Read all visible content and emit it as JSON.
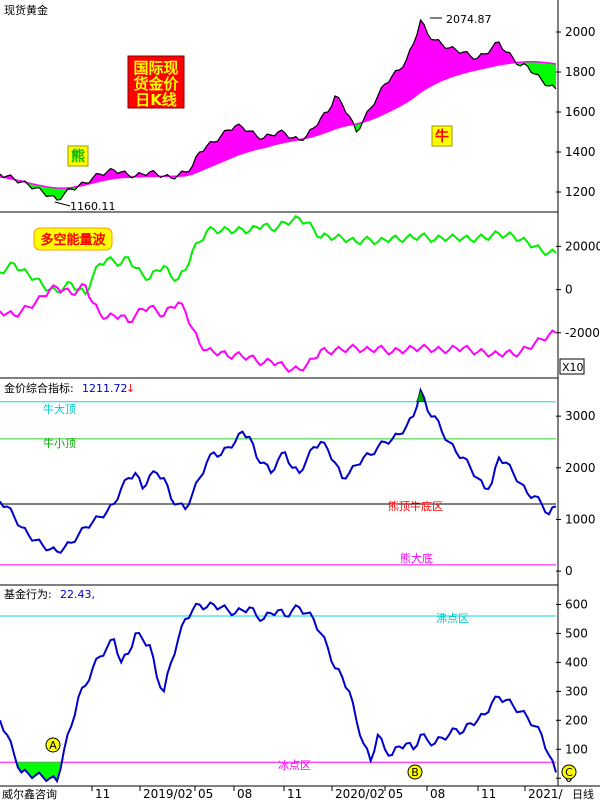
{
  "window": {
    "title": "现货黄金",
    "period_label": "日线"
  },
  "colors": {
    "price_line": "#000000",
    "bull_fill": "#ff00ff",
    "bear_fill": "#00ff00",
    "wave_green": "#00ee00",
    "wave_magenta": "#ff00ff",
    "index_line": "#0000cc",
    "ref_cyan": "#00dddd",
    "ref_green": "#33cc33",
    "ref_black": "#000000",
    "ref_magenta": "#ff00ff",
    "badge_red": "#ff0000",
    "badge_yellow": "#ffff00"
  },
  "labels": {
    "title_badge": "国际现货金价日K线",
    "bear": "熊",
    "bull": "牛",
    "wave_badge": "多空能量波",
    "index_name": "金价综合指标:",
    "index_value": "1211.72",
    "fund_name": "基金行为:",
    "fund_value": "22.43,",
    "cold_zone": "冰点区",
    "boil_zone": "沸点区",
    "bull_top": "牛大顶",
    "bull_small_top": "牛小顶",
    "bear_bottom": "熊顶牛底区",
    "bear_big_bottom": "熊大底",
    "marker_a": "A",
    "marker_b": "B",
    "marker_c": "C",
    "unit_x10": "X10",
    "footer_left": "威尔鑫咨询"
  },
  "chart_data": [
    {
      "type": "line",
      "name": "price",
      "x_labels": [
        "11",
        "2019/02",
        "05",
        "08",
        "11",
        "2020/02",
        "05",
        "08",
        "11",
        "2021/"
      ],
      "ylim": [
        1130,
        2120
      ],
      "yticks": [
        1200,
        1400,
        1600,
        1800,
        2000
      ],
      "max_label": "2074.87",
      "min_label": "1160.11",
      "values": [
        1290,
        1280,
        1265,
        1250,
        1235,
        1220,
        1200,
        1180,
        1160,
        1190,
        1215,
        1230,
        1245,
        1270,
        1290,
        1300,
        1310,
        1300,
        1285,
        1280,
        1290,
        1300,
        1290,
        1280,
        1270,
        1285,
        1300,
        1330,
        1400,
        1430,
        1450,
        1480,
        1510,
        1530,
        1525,
        1505,
        1480,
        1470,
        1485,
        1500,
        1495,
        1470,
        1460,
        1480,
        1520,
        1570,
        1600,
        1680,
        1640,
        1580,
        1500,
        1560,
        1620,
        1680,
        1740,
        1780,
        1810,
        1860,
        1940,
        2060,
        1990,
        1960,
        1940,
        1920,
        1910,
        1900,
        1880,
        1870,
        1890,
        1920,
        1950,
        1900,
        1870,
        1830,
        1830,
        1790,
        1760,
        1730,
        1715
      ],
      "moving_average": [
        1275,
        1270,
        1262,
        1255,
        1245,
        1237,
        1230,
        1223,
        1220,
        1219,
        1222,
        1228,
        1236,
        1245,
        1254,
        1262,
        1268,
        1272,
        1274,
        1276,
        1277,
        1278,
        1278,
        1278,
        1278,
        1279,
        1281,
        1290,
        1305,
        1320,
        1335,
        1350,
        1365,
        1380,
        1393,
        1404,
        1414,
        1422,
        1432,
        1441,
        1449,
        1456,
        1462,
        1469,
        1478,
        1490,
        1502,
        1516,
        1527,
        1535,
        1540,
        1550,
        1562,
        1576,
        1593,
        1610,
        1628,
        1648,
        1672,
        1700,
        1722,
        1741,
        1758,
        1772,
        1784,
        1795,
        1804,
        1812,
        1820,
        1828,
        1836,
        1841,
        1846,
        1849,
        1851,
        1851,
        1849,
        1845,
        1840
      ]
    },
    {
      "type": "line",
      "name": "energy_wave",
      "ylim": [
        -40000,
        35000
      ],
      "yticks": [
        20000,
        0,
        -20000
      ],
      "series": [
        {
          "values": [
            8000,
            10000,
            12000,
            9000,
            7000,
            5000,
            2000,
            0,
            -1000,
            1000,
            3000,
            0,
            -2000,
            6000,
            12000,
            14000,
            13000,
            12000,
            15000,
            10000,
            7000,
            5000,
            9000,
            11000,
            6000,
            5000,
            9000,
            18000,
            22000,
            27000,
            28000,
            27000,
            28000,
            27000,
            28000,
            27000,
            29000,
            30000,
            28000,
            29000,
            31000,
            32000,
            33000,
            31000,
            28000,
            24000,
            25000,
            24000,
            24000,
            23000,
            22000,
            23000,
            23000,
            22000,
            23000,
            24000,
            23000,
            24000,
            24000,
            25000,
            24000,
            23000,
            24000,
            24000,
            24000,
            24000,
            23000,
            24000,
            24000,
            25000,
            26000,
            25000,
            25000,
            23000,
            22000,
            20000,
            18000,
            17000,
            17000
          ]
        },
        {
          "values": [
            -10000,
            -11000,
            -12000,
            -10000,
            -8000,
            -6000,
            -3000,
            0,
            1000,
            0,
            -2000,
            0,
            2000,
            -6000,
            -11000,
            -13000,
            -12000,
            -12000,
            -15000,
            -12000,
            -9000,
            -8000,
            -10000,
            -12000,
            -8000,
            -6000,
            -10000,
            -18000,
            -25000,
            -28000,
            -29000,
            -29000,
            -31000,
            -30000,
            -31000,
            -31000,
            -33000,
            -34000,
            -33000,
            -34000,
            -36000,
            -37000,
            -37000,
            -35000,
            -32000,
            -28000,
            -29000,
            -28000,
            -28000,
            -27000,
            -27000,
            -28000,
            -28000,
            -27000,
            -28000,
            -29000,
            -28000,
            -28000,
            -27000,
            -27000,
            -27000,
            -28000,
            -28000,
            -28000,
            -27000,
            -27000,
            -28000,
            -29000,
            -29000,
            -30000,
            -30000,
            -29000,
            -30000,
            -29000,
            -27000,
            -25000,
            -23000,
            -21000,
            -20000
          ]
        }
      ]
    },
    {
      "type": "line",
      "name": "gold_index",
      "ylim": [
        -250,
        3700
      ],
      "yticks": [
        3000,
        2000,
        1000,
        0
      ],
      "reference_lines": {
        "bull_top": 3280,
        "bull_small_top": 2560,
        "bear_bottom": 1300,
        "bear_big_bottom": 120
      },
      "values": [
        1350,
        1250,
        1050,
        850,
        700,
        600,
        500,
        420,
        380,
        450,
        550,
        700,
        850,
        950,
        1050,
        1150,
        1300,
        1600,
        1800,
        1900,
        1600,
        1850,
        1900,
        1800,
        1400,
        1300,
        1200,
        1500,
        1800,
        2100,
        2300,
        2250,
        2400,
        2500,
        2700,
        2600,
        2200,
        2100,
        1900,
        2150,
        2300,
        2000,
        1900,
        2150,
        2400,
        2500,
        2350,
        2100,
        1800,
        1900,
        2050,
        2200,
        2250,
        2400,
        2500,
        2550,
        2650,
        2800,
        3000,
        3500,
        3100,
        3000,
        2700,
        2500,
        2300,
        2200,
        2000,
        1800,
        1600,
        1700,
        2200,
        2100,
        1900,
        1700,
        1500,
        1450,
        1300,
        1100,
        1250
      ]
    },
    {
      "type": "line",
      "name": "fund_behavior",
      "ylim": [
        -20,
        650
      ],
      "yticks": [
        600,
        500,
        400,
        300,
        200,
        100,
        0
      ],
      "reference_lines": {
        "boil_zone": 560,
        "cold_zone": 55
      },
      "values": [
        200,
        150,
        80,
        20,
        15,
        10,
        5,
        0,
        -10,
        100,
        180,
        280,
        320,
        380,
        420,
        450,
        480,
        400,
        430,
        500,
        480,
        460,
        350,
        300,
        400,
        480,
        550,
        580,
        600,
        590,
        600,
        590,
        580,
        570,
        580,
        590,
        560,
        550,
        570,
        580,
        560,
        580,
        590,
        570,
        550,
        500,
        450,
        380,
        350,
        300,
        200,
        120,
        60,
        150,
        100,
        80,
        110,
        120,
        100,
        150,
        130,
        120,
        140,
        150,
        170,
        160,
        190,
        200,
        220,
        260,
        280,
        270,
        250,
        230,
        210,
        180,
        150,
        80,
        20
      ]
    }
  ]
}
